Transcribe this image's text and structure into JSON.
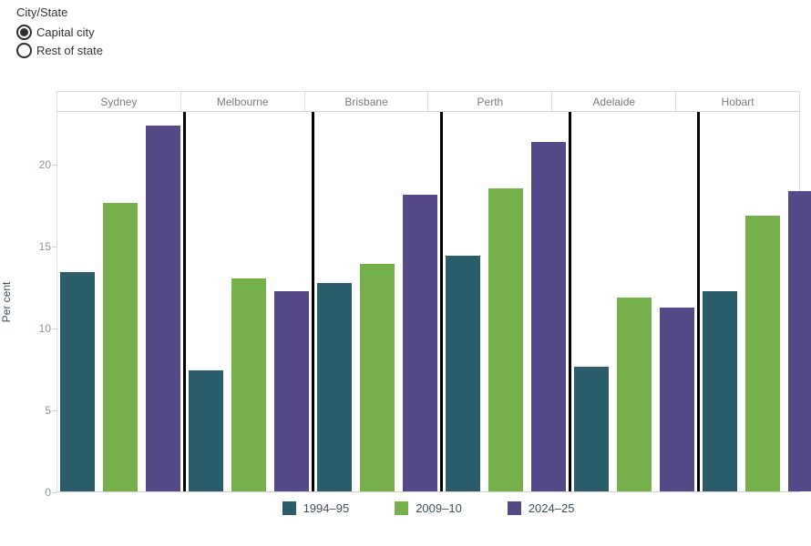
{
  "filter": {
    "title": "City/State",
    "options": [
      {
        "label": "Capital city",
        "selected": true
      },
      {
        "label": "Rest of state",
        "selected": false
      }
    ]
  },
  "chart_data": {
    "type": "bar",
    "title": "",
    "categories": [
      "Sydney",
      "Melbourne",
      "Brisbane",
      "Perth",
      "Adelaide",
      "Hobart"
    ],
    "series": [
      {
        "name": "1994–95",
        "color": "#2b5c69",
        "values": [
          13.4,
          7.4,
          12.7,
          14.4,
          7.6,
          12.2
        ]
      },
      {
        "name": "2009–10",
        "color": "#75b04a",
        "values": [
          17.6,
          13.0,
          13.9,
          18.5,
          11.8,
          16.8
        ]
      },
      {
        "name": "2024–25",
        "color": "#554a87",
        "values": [
          22.3,
          12.2,
          18.1,
          21.3,
          11.2,
          18.3
        ]
      }
    ],
    "xlabel": "",
    "ylabel": "Per cent",
    "yticks": [
      0,
      5,
      10,
      15,
      20
    ],
    "ylim": [
      0,
      23.2
    ],
    "grid": false,
    "legend_position": "bottom",
    "panel_divider_color": "#000000",
    "axis_line_color": "#dcdcdc"
  }
}
